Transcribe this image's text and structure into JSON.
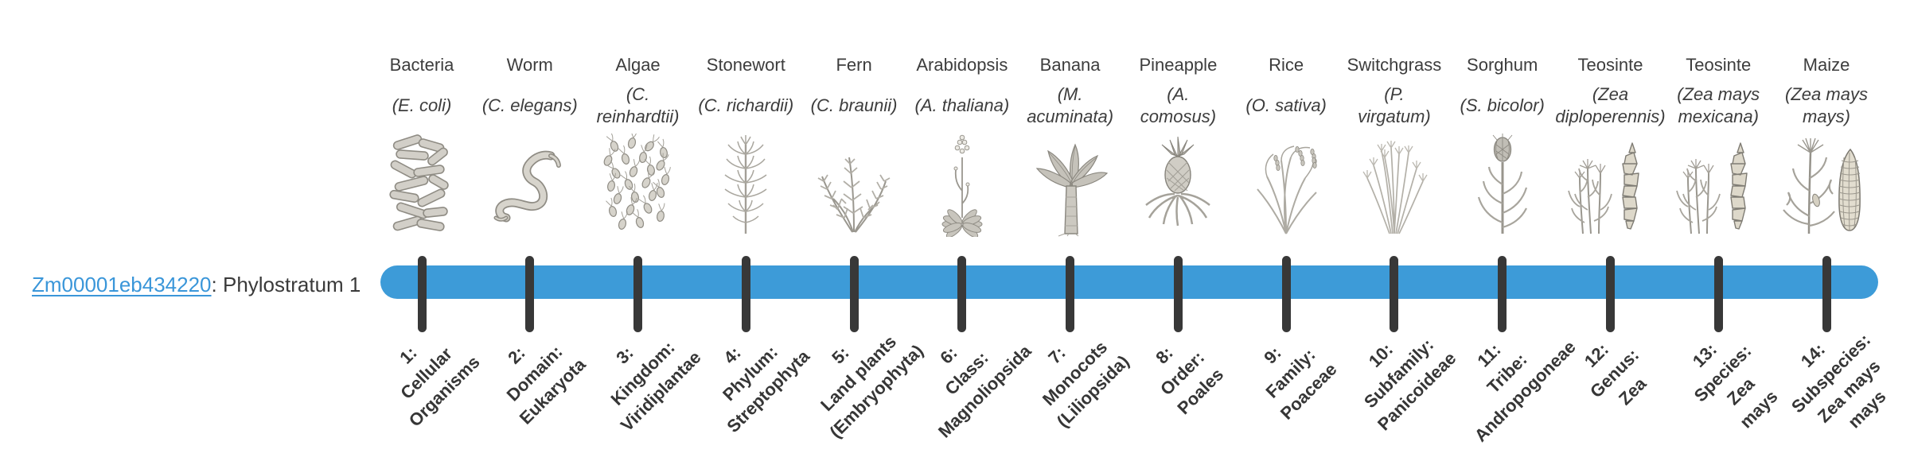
{
  "gene": {
    "id": "Zm00001eb434220",
    "suffix": ": Phylostratum 1",
    "phylostratum": "1"
  },
  "timeline": {
    "bar_color": "#3d9bd8",
    "tick_color": "#383838",
    "link_color": "#3a96d9",
    "tick_count": 14
  },
  "strata": [
    {
      "index": 1,
      "common_name": "Bacteria",
      "scientific_name": "(E. coli)",
      "tick_label": "1:\nCellular\nOrganisms",
      "icon": "bacteria-icon"
    },
    {
      "index": 2,
      "common_name": "Worm",
      "scientific_name": "(C. elegans)",
      "tick_label": "2:\nDomain:\nEukaryota",
      "icon": "worm-icon"
    },
    {
      "index": 3,
      "common_name": "Algae",
      "scientific_name": "(C.\nreinhardtii)",
      "tick_label": "3:\nKingdom:\nViridiplantae",
      "icon": "algae-icon"
    },
    {
      "index": 4,
      "common_name": "Stonewort",
      "scientific_name": "(C. richardii)",
      "tick_label": "4:\nPhylum:\nStreptophyta",
      "icon": "stonewort-icon"
    },
    {
      "index": 5,
      "common_name": "Fern",
      "scientific_name": "(C. braunii)",
      "tick_label": "5:\nLand plants\n(Embryophyta)",
      "icon": "fern-icon"
    },
    {
      "index": 6,
      "common_name": "Arabidopsis",
      "scientific_name": "(A. thaliana)",
      "tick_label": "6:\nClass:\nMagnoliopsida",
      "icon": "arabidopsis-icon"
    },
    {
      "index": 7,
      "common_name": "Banana",
      "scientific_name": "(M.\nacuminata)",
      "tick_label": "7:\nMonocots\n(Liliopsida)",
      "icon": "banana-icon"
    },
    {
      "index": 8,
      "common_name": "Pineapple",
      "scientific_name": "(A.\ncomosus)",
      "tick_label": "8:\nOrder:\nPoales",
      "icon": "pineapple-icon"
    },
    {
      "index": 9,
      "common_name": "Rice",
      "scientific_name": "(O. sativa)",
      "tick_label": "9:\nFamily:\nPoaceae",
      "icon": "rice-icon"
    },
    {
      "index": 10,
      "common_name": "Switchgrass",
      "scientific_name": "(P.\nvirgatum)",
      "tick_label": "10:\nSubfamily:\nPanicoideae",
      "icon": "switchgrass-icon"
    },
    {
      "index": 11,
      "common_name": "Sorghum",
      "scientific_name": "(S. bicolor)",
      "tick_label": "11:\nTribe:\nAndropogoneae",
      "icon": "sorghum-icon"
    },
    {
      "index": 12,
      "common_name": "Teosinte",
      "scientific_name": "(Zea\ndiploperennis)",
      "tick_label": "12:\nGenus:\nZea",
      "icon": "teosinte-icon"
    },
    {
      "index": 13,
      "common_name": "Teosinte",
      "scientific_name": "(Zea mays\nmexicana)",
      "tick_label": "13:\nSpecies:\nZea\nmays",
      "icon": "teosinte-icon"
    },
    {
      "index": 14,
      "common_name": "Maize",
      "scientific_name": "(Zea mays\nmays)",
      "tick_label": "14:\nSubspecies:\nZea mays\nmays",
      "icon": "maize-icon"
    }
  ]
}
